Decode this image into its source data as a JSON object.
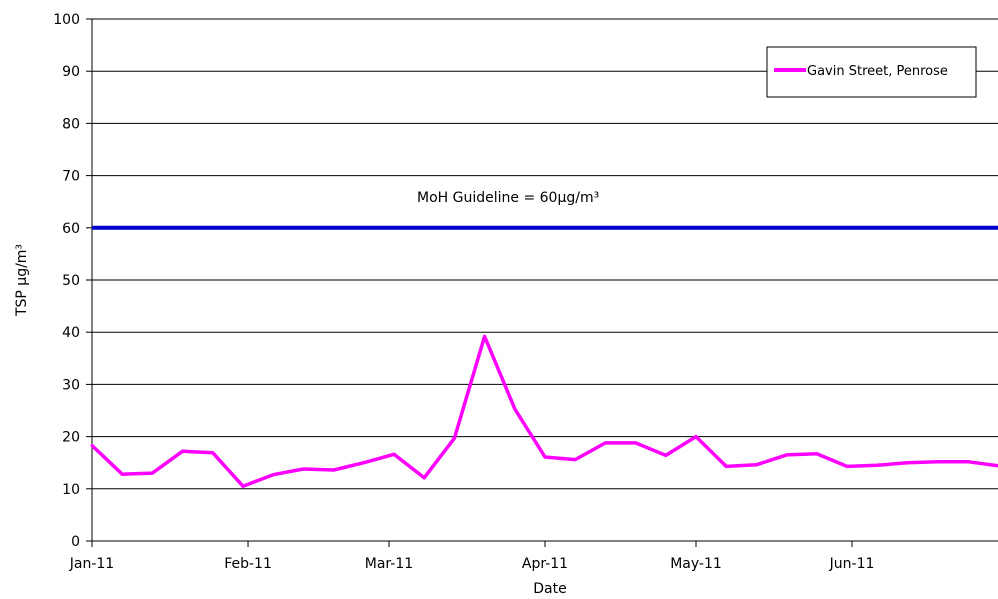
{
  "chart_data": {
    "type": "line",
    "xlabel": "Date",
    "ylabel": "TSP µg/m³",
    "ylim": [
      0,
      100
    ],
    "y_ticks": [
      0,
      10,
      20,
      30,
      40,
      50,
      60,
      70,
      80,
      90,
      100
    ],
    "x_range": [
      "2011-01-01",
      "2011-06-30"
    ],
    "x_tick_labels": [
      {
        "date": "2011-01-01",
        "label": "Jan-11"
      },
      {
        "date": "2011-02-01",
        "label": "Feb-11"
      },
      {
        "date": "2011-03-01",
        "label": "Mar-11"
      },
      {
        "date": "2011-04-01",
        "label": "Apr-11"
      },
      {
        "date": "2011-05-01",
        "label": "May-11"
      },
      {
        "date": "2011-06-01",
        "label": "Jun-11"
      }
    ],
    "grid": "horizontal",
    "legend": {
      "position": "top-right",
      "entries": [
        "Gavin Street, Penrose"
      ]
    },
    "series": [
      {
        "name": "Gavin Street, Penrose",
        "color": "#FF00FF",
        "x": [
          "2011-01-01",
          "2011-01-07",
          "2011-01-13",
          "2011-01-19",
          "2011-01-25",
          "2011-01-31",
          "2011-02-06",
          "2011-02-12",
          "2011-02-18",
          "2011-02-24",
          "2011-03-02",
          "2011-03-08",
          "2011-03-14",
          "2011-03-20",
          "2011-03-26",
          "2011-04-01",
          "2011-04-07",
          "2011-04-13",
          "2011-04-19",
          "2011-04-25",
          "2011-05-01",
          "2011-05-07",
          "2011-05-13",
          "2011-05-19",
          "2011-05-25",
          "2011-05-31",
          "2011-06-06",
          "2011-06-12",
          "2011-06-18",
          "2011-06-24",
          "2011-06-30"
        ],
        "values": [
          18.3,
          12.8,
          13.0,
          17.2,
          16.9,
          10.5,
          12.7,
          13.8,
          13.6,
          15.0,
          16.6,
          12.1,
          19.7,
          39.2,
          25.3,
          16.1,
          15.6,
          18.8,
          18.8,
          16.4,
          20.0,
          14.3,
          14.6,
          16.5,
          16.7,
          14.3,
          14.5,
          15.0,
          15.2,
          15.2,
          14.4
        ]
      }
    ],
    "reference_lines": [
      {
        "label": "MoH Guideline = 60µg/m³",
        "value": 60,
        "color": "#0000CC"
      }
    ]
  }
}
